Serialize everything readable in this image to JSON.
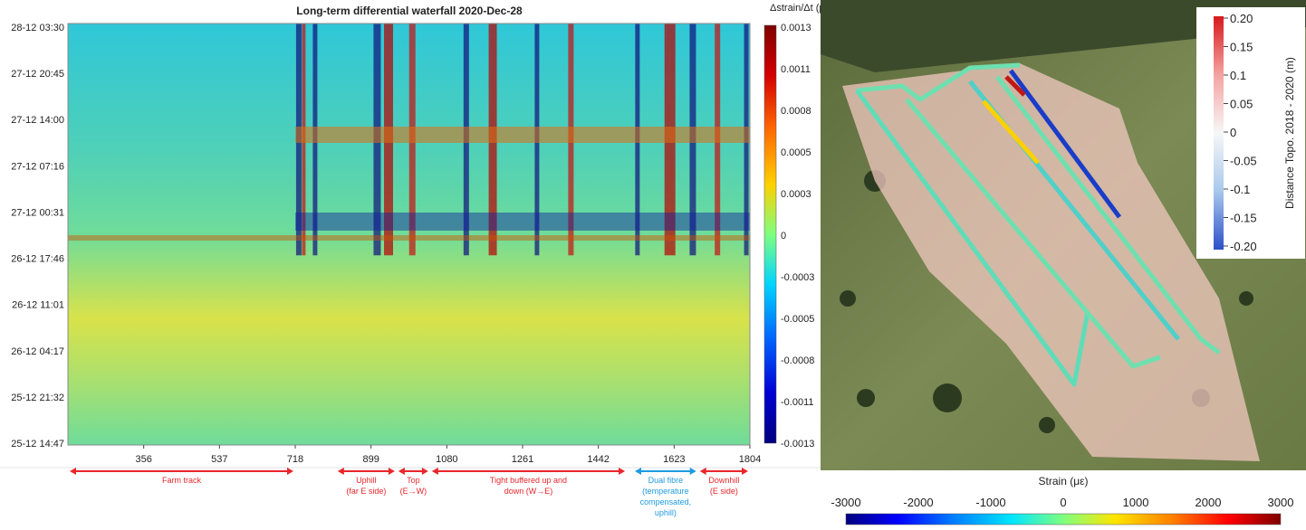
{
  "chart_data": [
    {
      "type": "heatmap",
      "title": "Long-term differential waterfall 2020-Dec-28",
      "colorbar_label": "Δstrain/Δt (με/s)",
      "colorbar_ticks": [
        "0.0013",
        "0.0011",
        "0.0008",
        "0.0005",
        "0.0003",
        "0",
        "-0.0003",
        "-0.0005",
        "-0.0008",
        "-0.0011",
        "-0.0013"
      ],
      "colorbar_range": [
        -0.0013,
        0.0013
      ],
      "colormap": "jet",
      "x_ticks": [
        356,
        537,
        718,
        899,
        1080,
        1261,
        1442,
        1623,
        1804
      ],
      "x_range": [
        175,
        1804
      ],
      "y_ticks": [
        "28-12 03:30",
        "27-12 20:45",
        "27-12 14:00",
        "27-12 07:16",
        "27-12 00:31",
        "26-12 17:46",
        "26-12 11:01",
        "26-12 04:17",
        "25-12 21:32",
        "25-12 14:47"
      ],
      "annotations": [
        {
          "text": [
            "Farm track"
          ],
          "x_start": 175,
          "x_end": 718,
          "color": "#e8262b"
        },
        {
          "text": [
            "Uphill",
            "(far E side)"
          ],
          "x_start": 815,
          "x_end": 960,
          "color": "#e8262b"
        },
        {
          "text": [
            "Top",
            "(E→W)"
          ],
          "x_start": 960,
          "x_end": 1040,
          "color": "#e8262b"
        },
        {
          "text": [
            "Tight buffered up and",
            "down (W→E)"
          ],
          "x_start": 1040,
          "x_end": 1510,
          "color": "#e8262b"
        },
        {
          "text": [
            "Dual fibre",
            "(temperature",
            "compensated,",
            "uphill)"
          ],
          "x_start": 1525,
          "x_end": 1680,
          "color": "#1e9be0"
        },
        {
          "text": [
            "Downhill",
            "(E side)"
          ],
          "x_start": 1680,
          "x_end": 1804,
          "color": "#e8262b"
        }
      ]
    },
    {
      "type": "heatmap",
      "title": "",
      "colorbar_vertical": {
        "label": "Distance Topo. 2018 - 2020 (m)",
        "ticks": [
          "0.20",
          "0.15",
          "0.1",
          "0.05",
          "0",
          "-0.05",
          "-0.1",
          "-0.15",
          "-0.20"
        ],
        "range": [
          -0.2,
          0.2
        ]
      },
      "colorbar_horizontal": {
        "label": "Strain (με)",
        "ticks": [
          "-3000",
          "-2000",
          "-1000",
          "0",
          "1000",
          "2000",
          "3000"
        ],
        "range": [
          -3000,
          3000
        ],
        "colormap": "jet"
      }
    }
  ]
}
